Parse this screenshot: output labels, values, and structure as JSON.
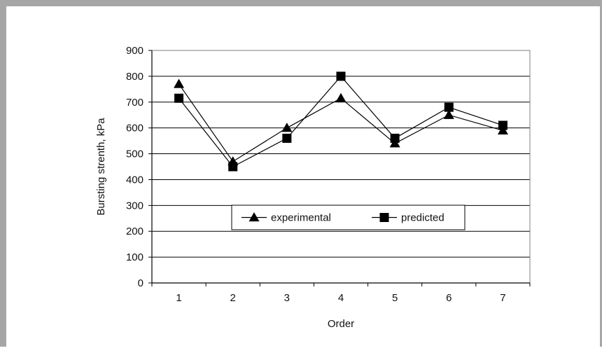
{
  "chart_data": {
    "type": "line",
    "title": "",
    "xlabel": "Order",
    "ylabel": "Bursting strenth, kPa",
    "categories": [
      "1",
      "2",
      "3",
      "4",
      "5",
      "6",
      "7"
    ],
    "ylim": [
      0,
      900
    ],
    "yticks": [
      0,
      100,
      200,
      300,
      400,
      500,
      600,
      700,
      800,
      900
    ],
    "grid": "horizontal",
    "legend_position": "center",
    "series": [
      {
        "name": "experimental",
        "marker": "triangle",
        "color": "#000000",
        "values": [
          770,
          470,
          600,
          715,
          540,
          650,
          590
        ]
      },
      {
        "name": "predicted",
        "marker": "square",
        "color": "#000000",
        "values": [
          715,
          450,
          560,
          800,
          560,
          680,
          610
        ]
      }
    ]
  }
}
